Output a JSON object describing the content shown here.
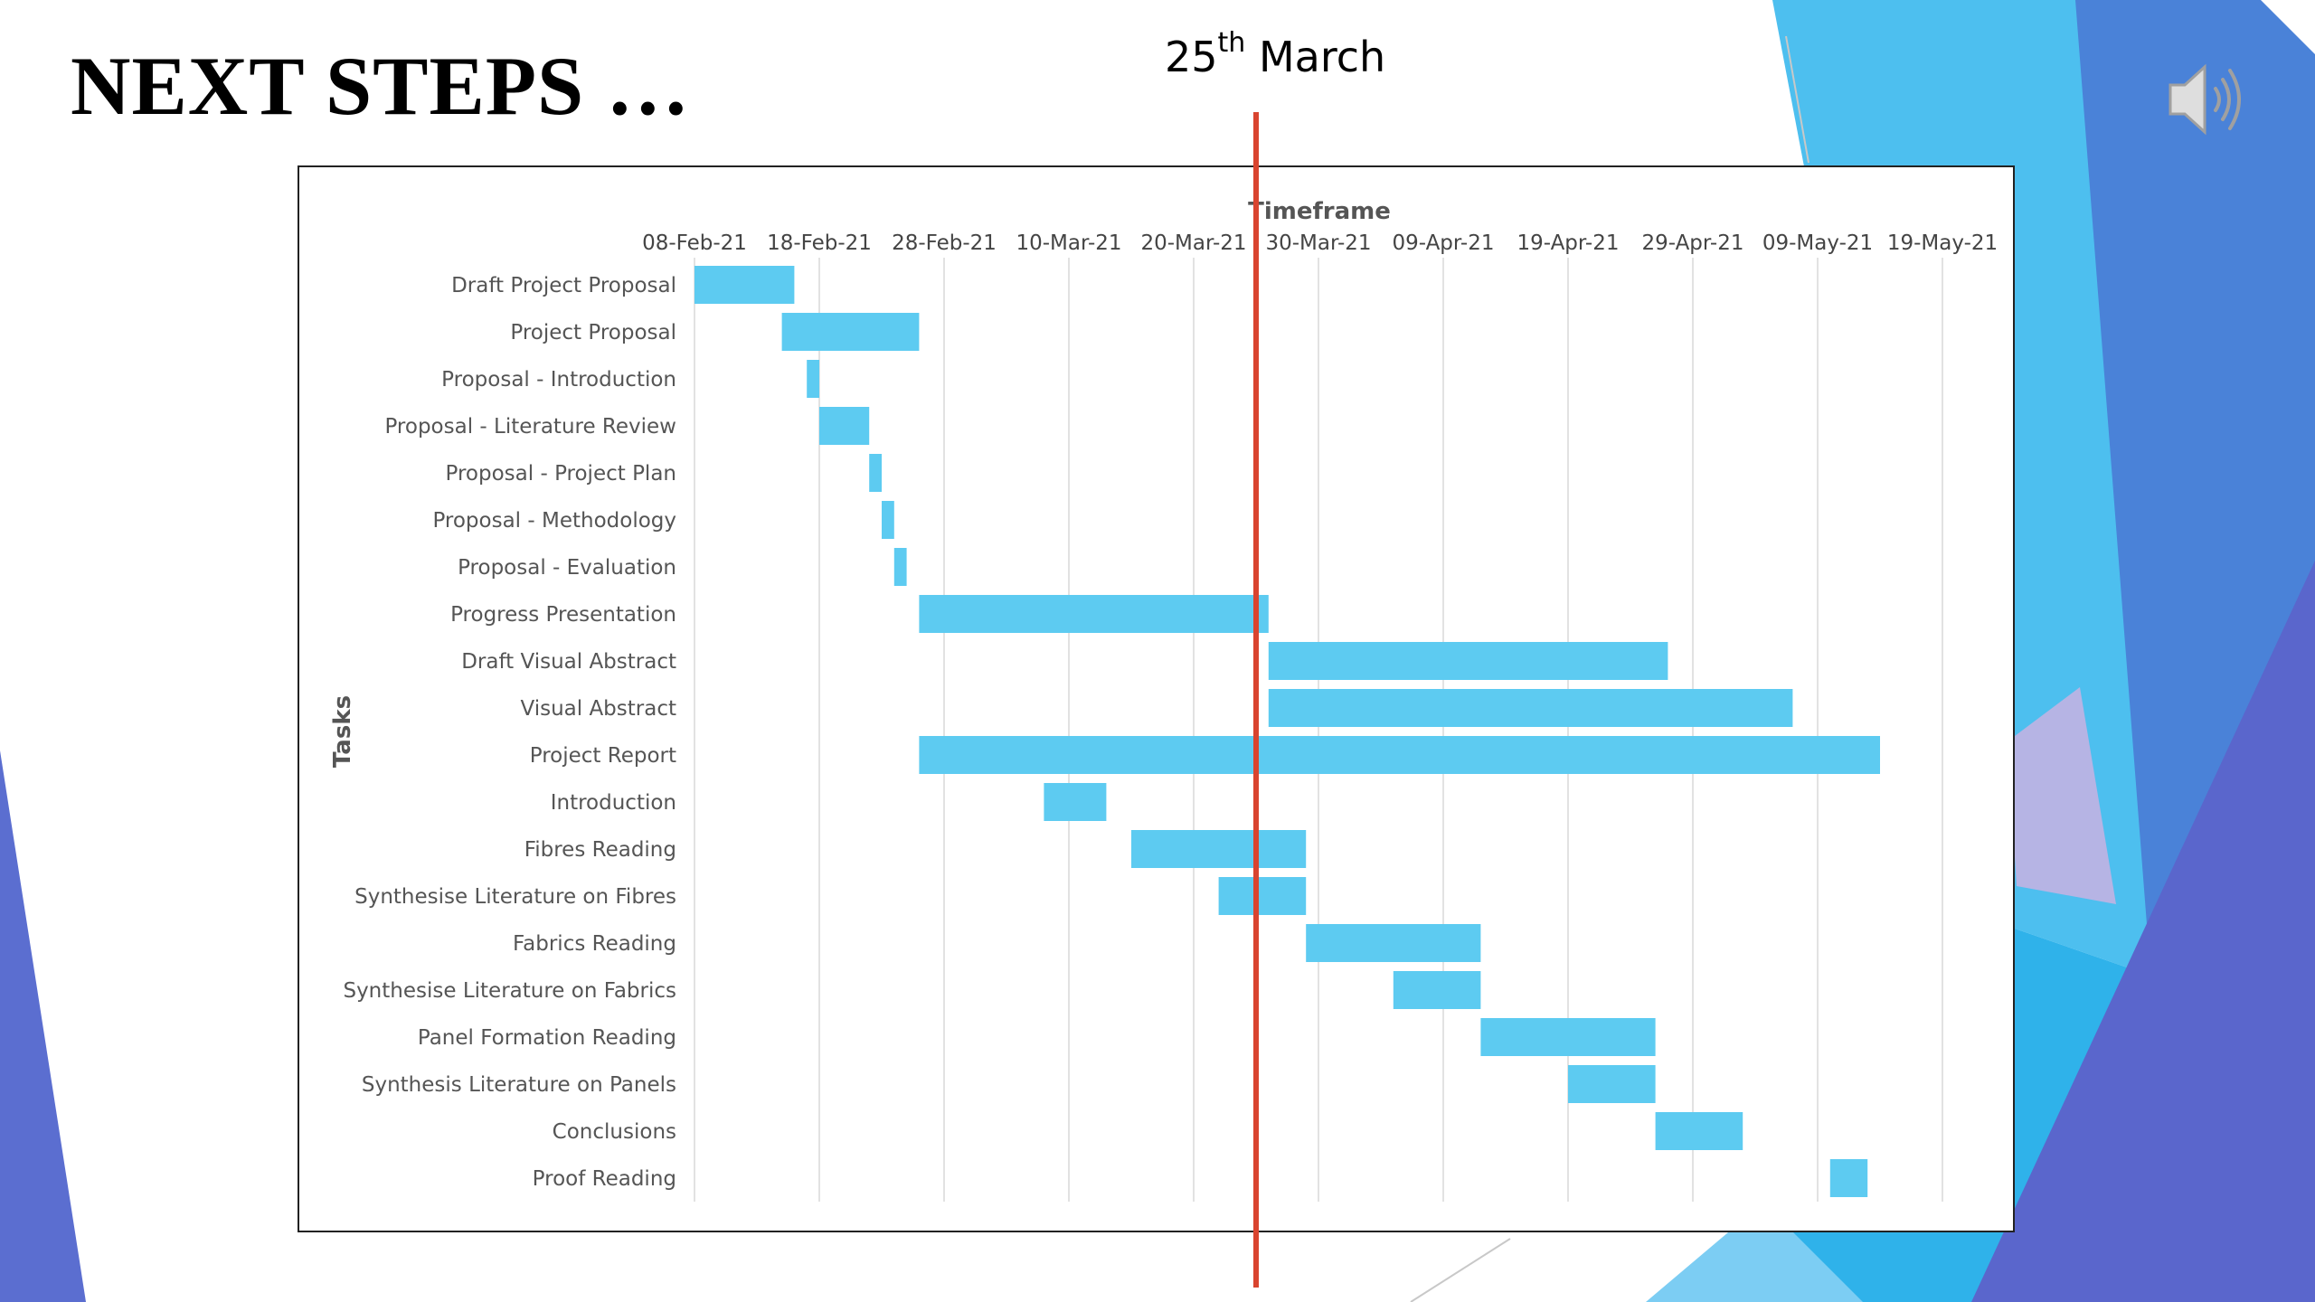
{
  "slide": {
    "title": "NEXT STEPS …",
    "marker_day": "25",
    "marker_suffix": "th",
    "marker_month": "March",
    "icon": "speaker-volume-icon",
    "colors": {
      "bar": "#5dcbf1",
      "marker_line": "#d9442f",
      "accent_light_blue": "#4dbfef",
      "accent_blue": "#4a78d6",
      "accent_purple": "#5f6fd0"
    }
  },
  "chart_data": {
    "type": "bar",
    "orientation": "horizontal-gantt",
    "title": "Timeframe",
    "xlabel": "",
    "ylabel": "Tasks",
    "x_ticks": [
      "08-Feb-21",
      "18-Feb-21",
      "28-Feb-21",
      "10-Mar-21",
      "20-Mar-21",
      "30-Mar-21",
      "09-Apr-21",
      "19-Apr-21",
      "29-Apr-21",
      "09-May-21",
      "19-May-21"
    ],
    "xlim": [
      "2021-02-08",
      "2021-05-19"
    ],
    "grid": true,
    "marker_date": "2021-03-25",
    "tasks": [
      {
        "name": "Draft Project Proposal",
        "start": "2021-02-08",
        "end": "2021-02-16"
      },
      {
        "name": "Project Proposal",
        "start": "2021-02-15",
        "end": "2021-02-26"
      },
      {
        "name": "Proposal - Introduction",
        "start": "2021-02-17",
        "end": "2021-02-18"
      },
      {
        "name": "Proposal - Literature Review",
        "start": "2021-02-18",
        "end": "2021-02-22"
      },
      {
        "name": "Proposal - Project Plan",
        "start": "2021-02-22",
        "end": "2021-02-23"
      },
      {
        "name": "Proposal - Methodology",
        "start": "2021-02-23",
        "end": "2021-02-24"
      },
      {
        "name": "Proposal - Evaluation",
        "start": "2021-02-24",
        "end": "2021-02-25"
      },
      {
        "name": "Progress Presentation",
        "start": "2021-02-26",
        "end": "2021-03-26"
      },
      {
        "name": "Draft Visual Abstract",
        "start": "2021-03-26",
        "end": "2021-04-27"
      },
      {
        "name": "Visual Abstract",
        "start": "2021-03-26",
        "end": "2021-05-07"
      },
      {
        "name": "Project Report",
        "start": "2021-02-26",
        "end": "2021-05-14"
      },
      {
        "name": "Introduction",
        "start": "2021-03-08",
        "end": "2021-03-13"
      },
      {
        "name": "Fibres Reading",
        "start": "2021-03-15",
        "end": "2021-03-29"
      },
      {
        "name": "Synthesise Literature on Fibres",
        "start": "2021-03-22",
        "end": "2021-03-29"
      },
      {
        "name": "Fabrics Reading",
        "start": "2021-03-29",
        "end": "2021-04-12"
      },
      {
        "name": "Synthesise Literature on Fabrics",
        "start": "2021-04-05",
        "end": "2021-04-12"
      },
      {
        "name": "Panel Formation Reading",
        "start": "2021-04-12",
        "end": "2021-04-26"
      },
      {
        "name": "Synthesis Literature on Panels",
        "start": "2021-04-19",
        "end": "2021-04-26"
      },
      {
        "name": "Conclusions",
        "start": "2021-04-26",
        "end": "2021-05-03"
      },
      {
        "name": "Proof Reading",
        "start": "2021-05-10",
        "end": "2021-05-13"
      }
    ]
  }
}
